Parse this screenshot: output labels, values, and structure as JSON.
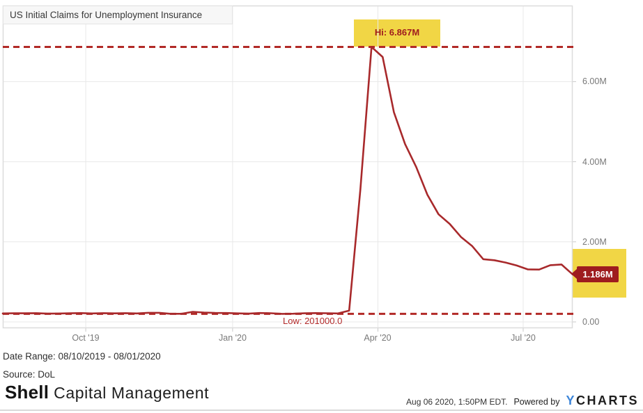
{
  "title": "US Initial Claims for Unemployment Insurance",
  "colors": {
    "series_line": "#a8292b",
    "dashed_line": "#b22a27",
    "highlight_yellow": "#f1d645",
    "badge_background": "#9e1c1e",
    "badge_text": "#ffffff",
    "hi_text": "#a01c1e",
    "low_text": "#b32a2a",
    "grid": "#e8e8e8",
    "plot_border": "#dcdcdc",
    "axis_text": "#787878",
    "ycharts_blue": "#3c85d9"
  },
  "annotations": {
    "hi_label": "Hi: 6.867M",
    "low_label": "Low: 201000.0",
    "last_value_label": "1.186M"
  },
  "chart_data": {
    "type": "line",
    "title": "US Initial Claims for Unemployment Insurance",
    "x_range": [
      "08/10/2019",
      "08/01/2020"
    ],
    "x_unit": "week",
    "y_unit": "claims (millions)",
    "ylim": [
      0,
      7.1
    ],
    "grid": true,
    "legend": "none",
    "hi": {
      "label": "Hi: 6.867M",
      "value": 6.867
    },
    "low": {
      "label": "Low: 201000.0",
      "value": 0.201
    },
    "last": {
      "label": "1.186M",
      "value": 1.186
    },
    "y_ticks": [
      {
        "label": "6.00M",
        "value": 6
      },
      {
        "label": "4.00M",
        "value": 4
      },
      {
        "label": "2.00M",
        "value": 2
      },
      {
        "label": "0.00",
        "value": 0
      }
    ],
    "x_ticks": [
      {
        "label": "Oct '19",
        "day": 52
      },
      {
        "label": "Jan '20",
        "day": 144
      },
      {
        "label": "Apr '20",
        "day": 235
      },
      {
        "label": "Jul '20",
        "day": 326
      }
    ],
    "total_days": 357,
    "series": [
      {
        "name": "US Initial Claims for Unemployment Insurance",
        "values_millions": [
          0.211,
          0.217,
          0.215,
          0.219,
          0.206,
          0.21,
          0.215,
          0.22,
          0.212,
          0.218,
          0.213,
          0.218,
          0.211,
          0.228,
          0.228,
          0.203,
          0.203,
          0.252,
          0.235,
          0.224,
          0.223,
          0.214,
          0.207,
          0.223,
          0.217,
          0.201,
          0.204,
          0.215,
          0.22,
          0.217,
          0.211,
          0.282,
          3.307,
          6.867,
          6.615,
          5.237,
          4.442,
          3.867,
          3.176,
          2.687,
          2.446,
          2.123,
          1.897,
          1.566,
          1.54,
          1.482,
          1.408,
          1.31,
          1.308,
          1.416,
          1.434,
          1.186
        ]
      }
    ]
  },
  "footer": {
    "date_range": "Date Range: 08/10/2019 - 08/01/2020",
    "source": "Source: DoL",
    "brand_bold": "Shell",
    "brand_rest": "Capital Management",
    "timestamp": "Aug 06 2020, 1:50PM EDT.",
    "powered_by": "Powered by",
    "ycharts_y": "Y",
    "ycharts_rest": "CHARTS"
  }
}
